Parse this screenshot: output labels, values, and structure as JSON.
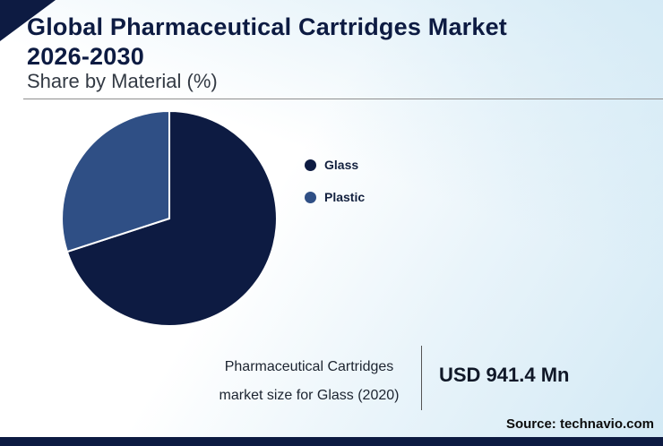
{
  "header": {
    "title": "Global Pharmaceutical Cartridges Market 2026-2030",
    "subtitle": "Share by Material (%)"
  },
  "chart_data": {
    "type": "pie",
    "title": "Share by Material (%)",
    "labels": [
      "Glass",
      "Plastic"
    ],
    "values": [
      70,
      30
    ],
    "unit": "%",
    "colors": [
      "#0d1b42",
      "#2f4f85"
    ],
    "start_angle_deg": 0,
    "legend_position": "right",
    "annotations": {
      "stat_caption": "Pharmaceutical Cartridges market size for Glass (2020)",
      "stat_value": "USD 941.4 Mn"
    }
  },
  "legend": {
    "items": [
      {
        "label": "Glass",
        "color": "#0d1b42"
      },
      {
        "label": "Plastic",
        "color": "#2f4f85"
      }
    ]
  },
  "stat": {
    "caption_line1": "Pharmaceutical Cartridges",
    "caption_line2": "market size for Glass (2020)",
    "value": "USD 941.4 Mn"
  },
  "source": "Source: technavio.com",
  "colors": {
    "navy": "#0d1b42",
    "plastic_blue": "#2f4f85",
    "background_tint": "#d2e9f5"
  }
}
